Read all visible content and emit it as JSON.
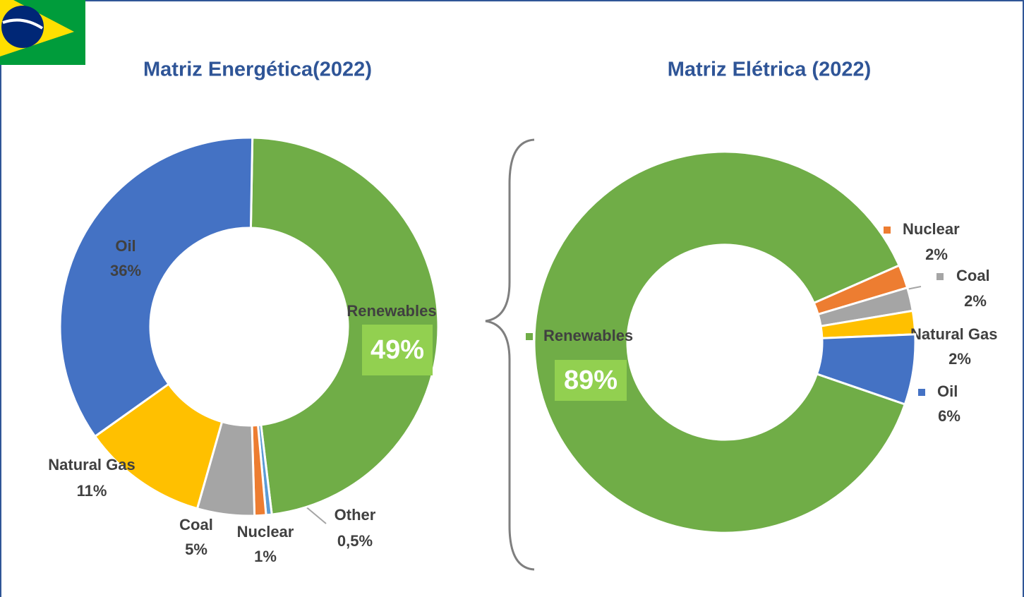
{
  "chart_data": [
    {
      "type": "donut",
      "title": "Matriz Energética(2022)",
      "categories": [
        "Renewables",
        "Other",
        "Nuclear",
        "Coal",
        "Natural Gas",
        "Oil"
      ],
      "values": [
        49,
        0.5,
        1,
        5,
        11,
        36
      ],
      "value_labels": [
        "49%",
        "0,5%",
        "1%",
        "5%",
        "11%",
        "36%"
      ],
      "colors": [
        "#70ad47",
        "#5b9bd5",
        "#ed7d31",
        "#a5a5a5",
        "#ffc000",
        "#4472c4"
      ]
    },
    {
      "type": "donut",
      "title": "Matriz Elétrica (2022)",
      "categories": [
        "Renewables",
        "Nuclear",
        "Coal",
        "Natural Gas",
        "Oil"
      ],
      "values": [
        89,
        2,
        2,
        2,
        6
      ],
      "value_labels": [
        "89%",
        "2%",
        "2%",
        "2%",
        "6%"
      ],
      "colors": [
        "#70ad47",
        "#ed7d31",
        "#a5a5a5",
        "#ffc000",
        "#4472c4"
      ]
    }
  ]
}
